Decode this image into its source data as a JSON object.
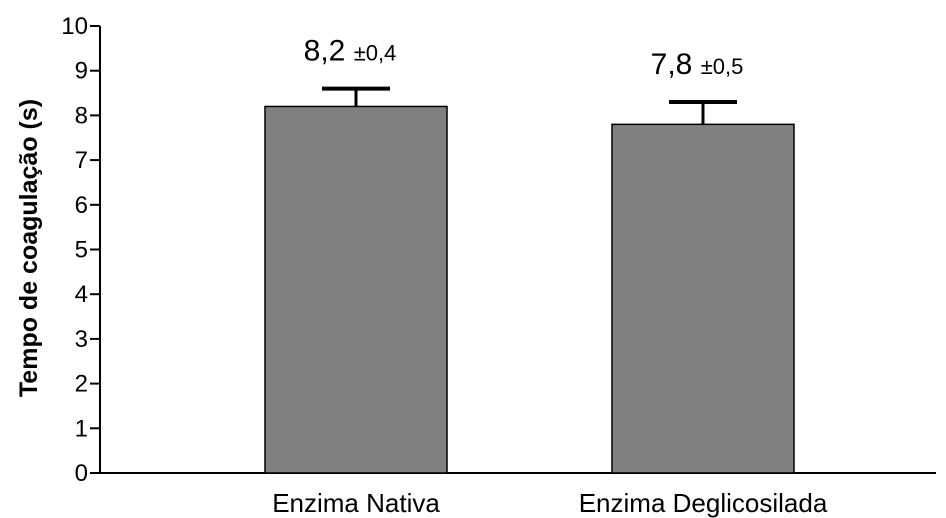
{
  "chart_data": {
    "type": "bar",
    "categories": [
      "Enzima Nativa",
      "Enzima Deglicosilada"
    ],
    "values": [
      8.2,
      7.8
    ],
    "errors": [
      0.4,
      0.5
    ],
    "value_labels": [
      "8,2",
      "7,8"
    ],
    "error_labels": [
      "±0,4",
      "±0,5"
    ],
    "title": "",
    "xlabel": "",
    "ylabel": "Tempo de coagulação (s)",
    "ylim": [
      0,
      10
    ],
    "yticks": [
      "0",
      "1",
      "2",
      "3",
      "4",
      "5",
      "6",
      "7",
      "8",
      "9",
      "10"
    ],
    "grid": false,
    "bar_color": "#808080"
  }
}
